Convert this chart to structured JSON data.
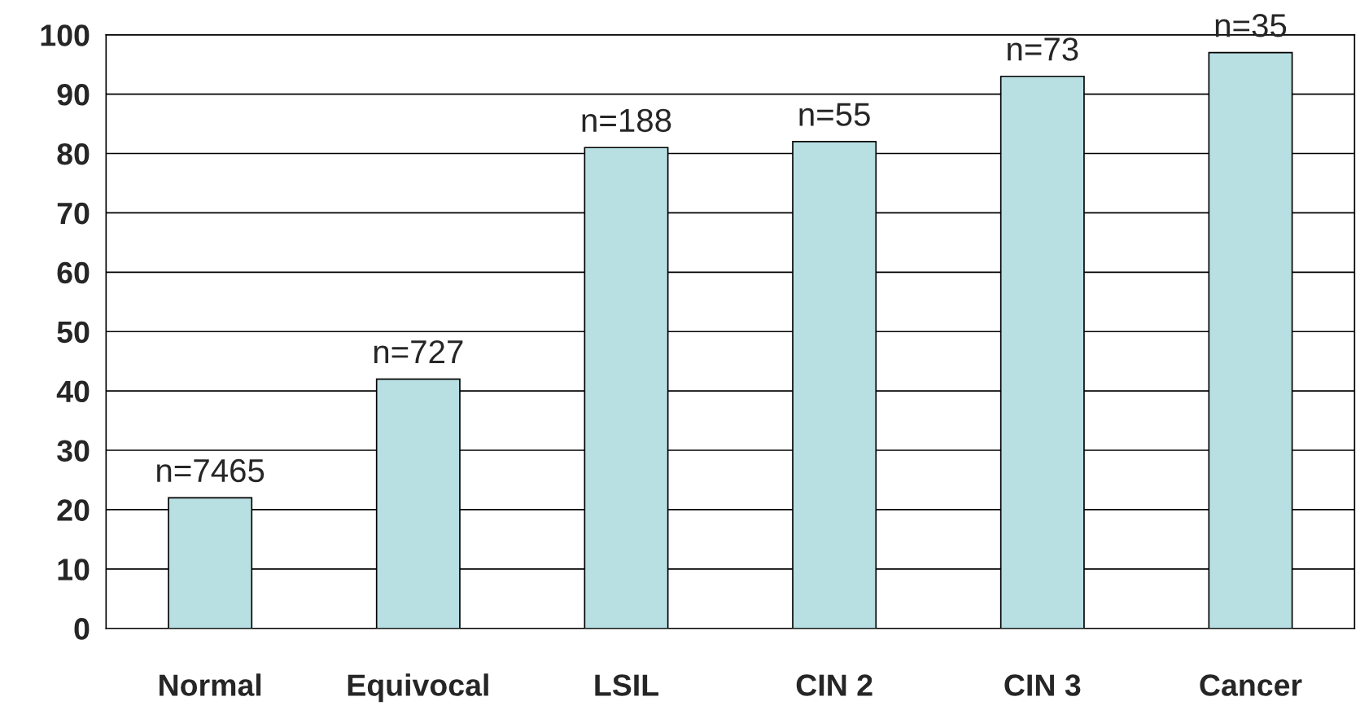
{
  "chart_data": {
    "type": "bar",
    "categories": [
      "Normal",
      "Equivocal",
      "LSIL",
      "CIN 2",
      "CIN 3",
      "Cancer"
    ],
    "values": [
      22,
      42,
      81,
      82,
      93,
      97
    ],
    "annotations": [
      {
        "text": "n=7465",
        "x": "Normal",
        "y": 22
      },
      {
        "text": "n=727",
        "x": "Equivocal",
        "y": 42
      },
      {
        "text": "n=188",
        "x": "LSIL",
        "y": 81
      },
      {
        "text": "n=55",
        "x": "CIN 2",
        "y": 82
      },
      {
        "text": "n=73",
        "x": "CIN 3",
        "y": 93
      },
      {
        "text": "n=35",
        "x": "Cancer",
        "y": 97
      }
    ],
    "color": "#b8e0e3",
    "ylim": [
      0,
      100
    ],
    "yticks": [
      0,
      10,
      20,
      30,
      40,
      50,
      60,
      70,
      80,
      90,
      100
    ],
    "grid": "y"
  }
}
